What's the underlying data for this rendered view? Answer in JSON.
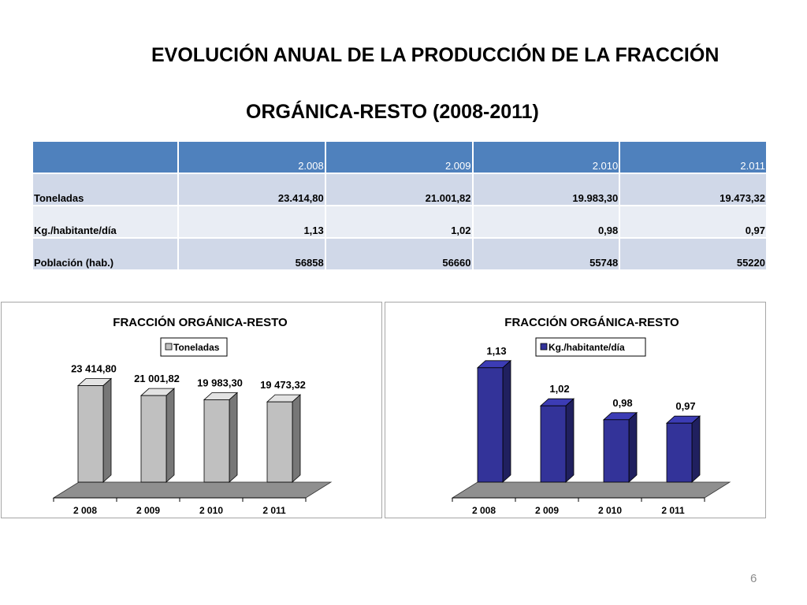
{
  "slide": {
    "title_line1": "EVOLUCIÓN ANUAL DE LA PRODUCCIÓN DE LA FRACCIÓN",
    "title_line2": "ORGÁNICA-RESTO (2008-2011)",
    "page_number": "6"
  },
  "table": {
    "headers": [
      "",
      "2.008",
      "2.009",
      "2.010",
      "2.011"
    ],
    "rows": [
      {
        "label": "Toneladas",
        "values": [
          "23.414,80",
          "21.001,82",
          "19.983,30",
          "19.473,32"
        ]
      },
      {
        "label": "Kg./habitante/día",
        "values": [
          "1,13",
          "1,02",
          "0,98",
          "0,97"
        ]
      },
      {
        "label": "Población (hab.)",
        "values": [
          "56858",
          "56660",
          "55748",
          "55220"
        ]
      }
    ]
  },
  "chart_data": [
    {
      "type": "bar",
      "title": "FRACCIÓN ORGÁNICA-RESTO",
      "categories": [
        "2 008",
        "2 009",
        "2 010",
        "2 011"
      ],
      "series": [
        {
          "name": "Toneladas",
          "values": [
            23414.8,
            21001.82,
            19983.3,
            19473.32
          ]
        }
      ],
      "data_labels": [
        "23 414,80",
        "21 001,82",
        "19 983,30",
        "19 473,32"
      ],
      "ylim": [
        0,
        26000
      ],
      "legend": "top-center",
      "grid": false,
      "color": "#c0c0c0"
    },
    {
      "type": "bar",
      "title": "FRACCIÓN ORGÁNICA-RESTO",
      "categories": [
        "2 008",
        "2 009",
        "2 010",
        "2 011"
      ],
      "series": [
        {
          "name": "Kg./habitante/día",
          "values": [
            1.13,
            1.02,
            0.98,
            0.97
          ]
        }
      ],
      "data_labels": [
        "1,13",
        "1,02",
        "0,98",
        "0,97"
      ],
      "ylim": [
        0.8,
        1.2
      ],
      "legend": "top-center",
      "grid": false,
      "color": "#333399"
    }
  ]
}
